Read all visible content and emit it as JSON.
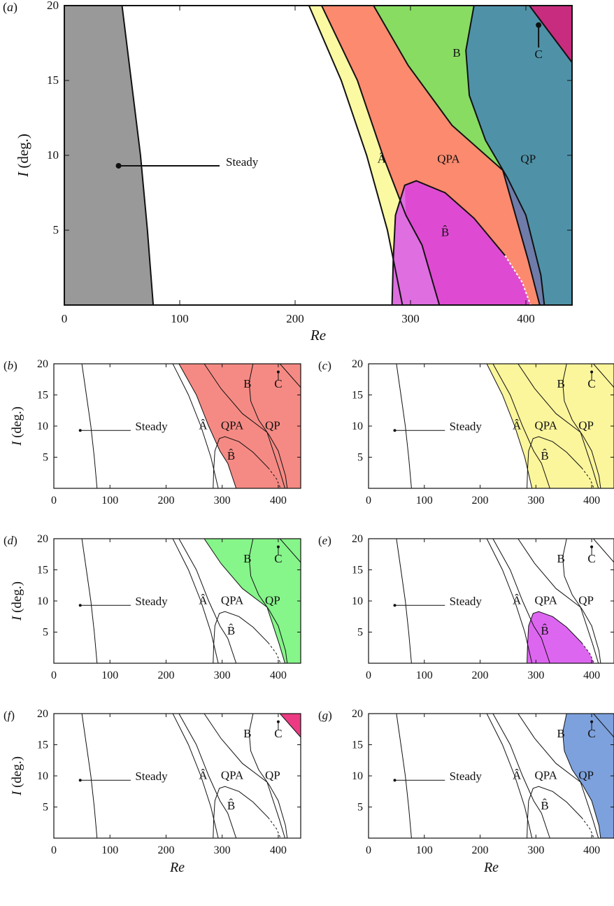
{
  "figure": {
    "chart_data": [
      {
        "panel": "(a)",
        "type": "area",
        "xlabel": "Re",
        "ylabel": "I (deg.)",
        "xlim": [
          0,
          440
        ],
        "ylim": [
          0,
          20
        ],
        "xticks": [
          0,
          100,
          200,
          300,
          400
        ],
        "yticks": [
          5,
          10,
          15,
          20
        ],
        "highlight": "all",
        "region_labels": [
          "Steady",
          "Â",
          "QPA",
          "B",
          "C",
          "QP",
          "B̂"
        ]
      },
      {
        "panel": "(b)",
        "type": "area",
        "xlabel": "",
        "ylabel": "I (deg.)",
        "xlim": [
          0,
          440
        ],
        "ylim": [
          0,
          20
        ],
        "xticks": [
          0,
          100,
          200,
          300,
          400
        ],
        "yticks": [
          5,
          10,
          15,
          20
        ],
        "highlight": "QPA",
        "highlight_color": "#f58a84"
      },
      {
        "panel": "(c)",
        "type": "area",
        "xlabel": "",
        "ylabel": "",
        "xlim": [
          0,
          440
        ],
        "ylim": [
          0,
          20
        ],
        "xticks": [
          0,
          100,
          200,
          300,
          400
        ],
        "yticks": [
          5,
          10,
          15,
          20
        ],
        "highlight": "Â",
        "highlight_color": "#fbf59c"
      },
      {
        "panel": "(d)",
        "type": "area",
        "xlabel": "",
        "ylabel": "I (deg.)",
        "xlim": [
          0,
          440
        ],
        "ylim": [
          0,
          20
        ],
        "xticks": [
          0,
          100,
          200,
          300,
          400
        ],
        "yticks": [
          5,
          10,
          15,
          20
        ],
        "highlight": "B",
        "highlight_color": "#86f58a"
      },
      {
        "panel": "(e)",
        "type": "area",
        "xlabel": "",
        "ylabel": "",
        "xlim": [
          0,
          440
        ],
        "ylim": [
          0,
          20
        ],
        "xticks": [
          0,
          100,
          200,
          300,
          400
        ],
        "yticks": [
          5,
          10,
          15,
          20
        ],
        "highlight": "B̂",
        "highlight_color": "#dd66f0"
      },
      {
        "panel": "(f)",
        "type": "area",
        "xlabel": "Re",
        "ylabel": "I (deg.)",
        "xlim": [
          0,
          440
        ],
        "ylim": [
          0,
          20
        ],
        "xticks": [
          0,
          100,
          200,
          300,
          400
        ],
        "yticks": [
          5,
          10,
          15,
          20
        ],
        "highlight": "C",
        "highlight_color": "#ec3b82"
      },
      {
        "panel": "(g)",
        "type": "area",
        "xlabel": "Re",
        "ylabel": "",
        "xlim": [
          0,
          440
        ],
        "ylim": [
          0,
          20
        ],
        "xticks": [
          0,
          100,
          200,
          300,
          400
        ],
        "yticks": [
          5,
          10,
          15,
          20
        ],
        "highlight": "QP",
        "highlight_color": "#7da1dc"
      }
    ],
    "colors": {
      "steady": "#999999",
      "ahat": "#fbfaa3",
      "qpa": "#fc8a6e",
      "b": "#88dc62",
      "qp": "#4f92a8",
      "c": "#c72c7e",
      "bhat": "#de4bd2",
      "bhat_light": "#df6ee0",
      "overlap": "#6f7caa"
    },
    "boundaries": {
      "steady": [
        [
          50,
          20
        ],
        [
          58,
          15
        ],
        [
          66,
          10
        ],
        [
          72,
          5
        ],
        [
          77,
          0
        ]
      ],
      "a_left": [
        [
          212,
          20
        ],
        [
          240,
          15
        ],
        [
          262,
          10
        ],
        [
          280,
          5
        ],
        [
          293,
          0
        ]
      ],
      "a_right": [
        [
          223,
          20
        ],
        [
          254,
          15
        ],
        [
          276,
          10
        ],
        [
          296,
          6
        ],
        [
          310,
          4
        ],
        [
          325,
          0
        ]
      ],
      "b_left": [
        [
          268,
          20
        ],
        [
          298,
          16
        ],
        [
          336,
          12
        ],
        [
          380,
          9
        ],
        [
          402,
          3
        ],
        [
          412,
          0
        ]
      ],
      "qp_left": [
        [
          355,
          20
        ],
        [
          348,
          17
        ],
        [
          351,
          14
        ],
        [
          365,
          11
        ],
        [
          384,
          8.5
        ],
        [
          400,
          6
        ],
        [
          413,
          2
        ],
        [
          416,
          0
        ]
      ],
      "c_line": [
        [
          358,
          20
        ],
        [
          400,
          18.5
        ],
        [
          440,
          16.3
        ]
      ],
      "c_top_right_left": [
        [
          403,
          20
        ],
        [
          440,
          16.2
        ]
      ],
      "bhat_top": [
        [
          284,
          0
        ],
        [
          285,
          3
        ],
        [
          287,
          6
        ],
        [
          295,
          8
        ],
        [
          305,
          8.3
        ],
        [
          330,
          7.5
        ],
        [
          355,
          5.8
        ],
        [
          382,
          3.3
        ],
        [
          397,
          1.5
        ],
        [
          404,
          0
        ]
      ]
    }
  }
}
